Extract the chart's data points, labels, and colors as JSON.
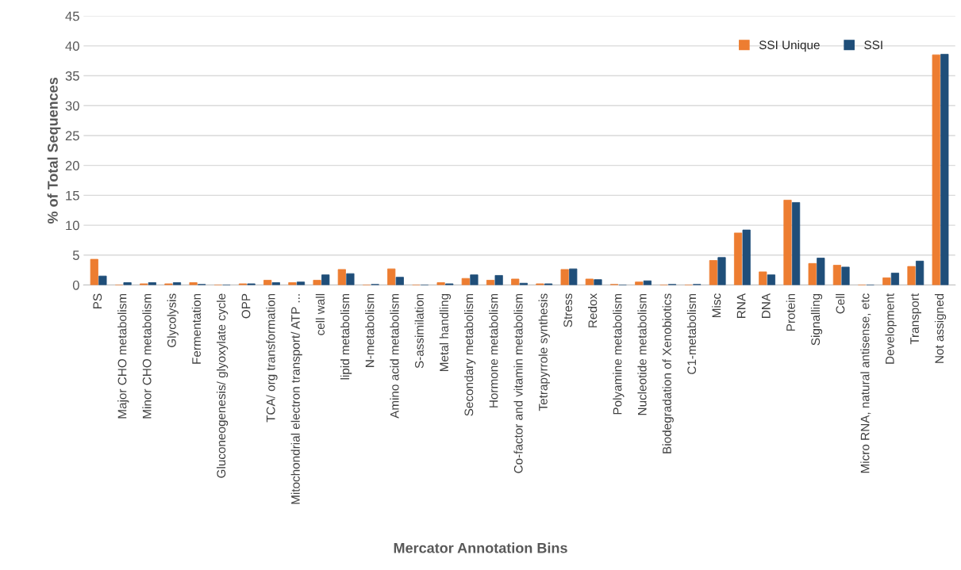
{
  "chart_data": {
    "type": "bar",
    "xlabel": "Mercator Annotation Bins",
    "ylabel": "% of Total Sequences",
    "categories": [
      "PS",
      "Major CHO metabolism",
      "Minor CHO metabolism",
      "Glycolysis",
      "Fermentation",
      "Gluconeogenesis/ glyoxylate cycle",
      "OPP",
      "TCA/ org transformation",
      "Mitochondrial electron transport/ ATP ...",
      "cell wall",
      "lipid metabolism",
      "N-metabolism",
      "Amino acid metabolism",
      "S-assimilation",
      "Metal handling",
      "Secondary metabolism",
      "Hormone metabolism",
      "Co-factor and vitamin metabolism",
      "Tetrapyrrole synthesis",
      "Stress",
      "Redox",
      "Polyamine metabolism",
      "Nucleotide metabolism",
      "Biodegradation of Xenobiotics",
      "C1-metabolism",
      "Misc",
      "RNA",
      "DNA",
      "Protein",
      "Signalling",
      "Cell",
      "Micro RNA, natural antisense, etc",
      "Development",
      "Transport",
      "Not assigned"
    ],
    "series": [
      {
        "name": "SSI Unique",
        "color": "#ed7d31",
        "values": [
          4.3,
          0,
          0.2,
          0.2,
          0.4,
          0,
          0.2,
          0.8,
          0.4,
          0.8,
          2.6,
          0,
          2.7,
          0,
          0.4,
          1.1,
          0.8,
          1.0,
          0.2,
          2.6,
          1.0,
          0.1,
          0.5,
          0,
          0,
          4.1,
          8.7,
          2.2,
          14.2,
          3.6,
          3.3,
          0,
          1.2,
          3.1,
          38.5
        ]
      },
      {
        "name": "SSI",
        "color": "#1f4e79",
        "values": [
          1.5,
          0.4,
          0.4,
          0.4,
          0.1,
          0,
          0.2,
          0.4,
          0.5,
          1.7,
          1.9,
          0.1,
          1.3,
          0,
          0.2,
          1.7,
          1.6,
          0.3,
          0.2,
          2.7,
          0.9,
          0,
          0.7,
          0.1,
          0.1,
          4.6,
          9.2,
          1.7,
          13.8,
          4.5,
          3.0,
          0,
          2.0,
          4.0,
          38.6
        ]
      }
    ],
    "ylim": [
      0,
      45
    ],
    "yticks": [
      0,
      5,
      10,
      15,
      20,
      25,
      30,
      35,
      40,
      45
    ],
    "grid": "y",
    "legend": "top right"
  }
}
